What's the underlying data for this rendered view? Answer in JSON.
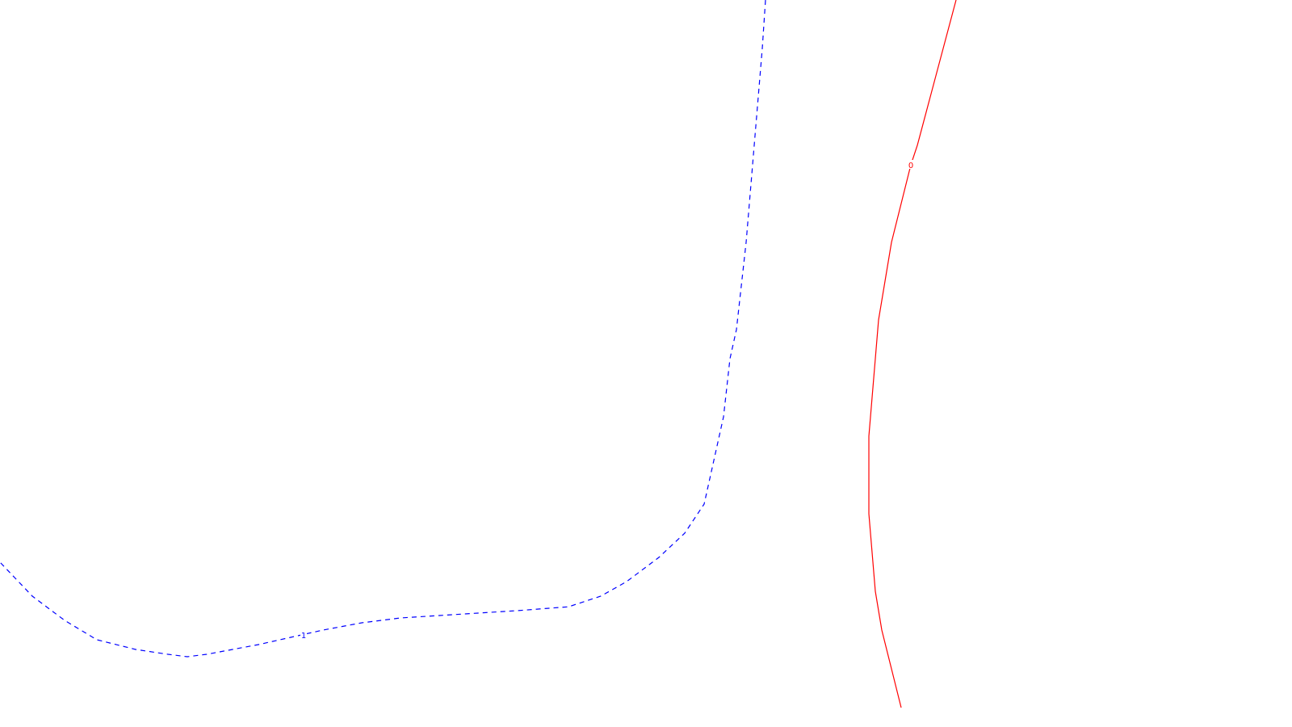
{
  "chart_data": {
    "type": "line",
    "title": "",
    "xlabel": "",
    "ylabel": "",
    "axes_visible": false,
    "grid": false,
    "legend": "none",
    "series": [
      {
        "label": "1",
        "color": "#0000ff",
        "line_style": "dashed",
        "points": [
          [
            -0.05,
            0.4
          ],
          [
            0.0,
            0.34
          ],
          [
            0.05,
            0.27
          ],
          [
            0.1,
            0.22
          ],
          [
            0.15,
            0.18
          ],
          [
            0.21,
            0.16
          ],
          [
            0.26,
            0.15
          ],
          [
            0.29,
            0.145
          ],
          [
            0.32,
            0.15
          ],
          [
            0.36,
            0.16
          ],
          [
            0.4,
            0.17
          ],
          [
            0.45,
            0.185
          ],
          [
            0.5,
            0.2
          ],
          [
            0.56,
            0.215
          ],
          [
            0.62,
            0.225
          ],
          [
            0.68,
            0.23
          ],
          [
            0.74,
            0.235
          ],
          [
            0.8,
            0.24
          ],
          [
            0.85,
            0.245
          ],
          [
            0.88,
            0.248
          ],
          [
            0.93,
            0.27
          ],
          [
            0.97,
            0.3
          ],
          [
            1.02,
            0.35
          ],
          [
            1.06,
            0.4
          ],
          [
            1.09,
            0.46
          ],
          [
            1.1,
            0.52
          ],
          [
            1.11,
            0.58
          ],
          [
            1.12,
            0.64
          ],
          [
            1.125,
            0.7
          ],
          [
            1.13,
            0.76
          ],
          [
            1.14,
            0.82
          ],
          [
            1.145,
            0.88
          ],
          [
            1.15,
            0.94
          ],
          [
            1.155,
            1.0
          ],
          [
            1.16,
            1.08
          ],
          [
            1.165,
            1.16
          ],
          [
            1.17,
            1.24
          ],
          [
            1.175,
            1.32
          ],
          [
            1.18,
            1.4
          ],
          [
            1.185,
            1.5
          ]
        ],
        "label_at": [
          0.47,
          0.19
        ]
      },
      {
        "label": "0",
        "color": "#ff0000",
        "line_style": "solid",
        "points": [
          [
            1.48,
            1.5
          ],
          [
            1.46,
            1.4
          ],
          [
            1.44,
            1.3
          ],
          [
            1.42,
            1.2
          ],
          [
            1.41,
            1.16
          ],
          [
            1.395,
            1.08
          ],
          [
            1.38,
            1.0
          ],
          [
            1.37,
            0.92
          ],
          [
            1.36,
            0.84
          ],
          [
            1.355,
            0.76
          ],
          [
            1.35,
            0.68
          ],
          [
            1.345,
            0.6
          ],
          [
            1.345,
            0.52
          ],
          [
            1.345,
            0.44
          ],
          [
            1.35,
            0.36
          ],
          [
            1.355,
            0.28
          ],
          [
            1.365,
            0.2
          ],
          [
            1.38,
            0.12
          ],
          [
            1.395,
            0.04
          ]
        ],
        "label_at": [
          1.41,
          1.16
        ]
      }
    ],
    "xlim": [
      0.0,
      2.0
    ],
    "ylim": [
      0.0,
      1.5
    ]
  }
}
